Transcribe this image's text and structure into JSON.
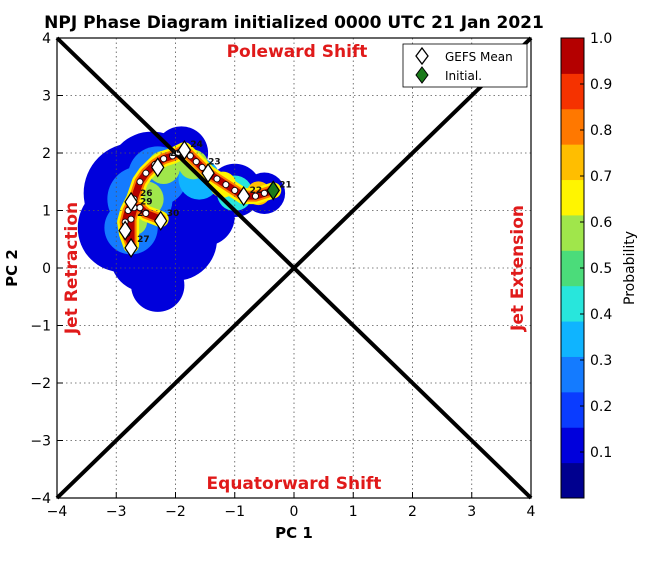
{
  "chart_data": {
    "type": "scatter",
    "title": "NPJ Phase Diagram initialized 0000 UTC 21 Jan 2021",
    "xlabel": "PC 1",
    "ylabel": "PC 2",
    "xlim": [
      -4,
      4
    ],
    "ylim": [
      -4,
      4
    ],
    "x_ticks": [
      "−4",
      "−3",
      "−2",
      "−1",
      "0",
      "1",
      "2",
      "3",
      "4"
    ],
    "y_ticks": [
      "−4",
      "−3",
      "−2",
      "−1",
      "0",
      "1",
      "2",
      "3",
      "4"
    ],
    "grid": true,
    "region_labels": {
      "top": "Poleward Shift",
      "bottom": "Equatorward Shift",
      "left": "Jet Retraction",
      "right": "Jet Extension"
    },
    "legend": {
      "placement": "top-right",
      "entries": [
        {
          "label": "GEFS Mean",
          "marker": "diamond",
          "color": "#ffffff"
        },
        {
          "label": "Initial.",
          "marker": "diamond",
          "color": "#1a7a1a"
        }
      ]
    },
    "colorbar": {
      "label": "Probability",
      "ticks": [
        "0.1",
        "0.2",
        "0.3",
        "0.4",
        "0.5",
        "0.6",
        "0.7",
        "0.8",
        "0.9",
        "1.0"
      ],
      "colors": [
        "#00008f",
        "#0000dc",
        "#0a3cff",
        "#147bff",
        "#0fb4ff",
        "#28e6dc",
        "#4bdc7a",
        "#a0e64b",
        "#fff500",
        "#ffbe00",
        "#ff7800",
        "#f53200",
        "#b40000"
      ]
    },
    "gefs_mean_path": [
      {
        "day": "21",
        "x": -0.35,
        "y": 1.35
      },
      {
        "day": "",
        "x": -0.5,
        "y": 1.3
      },
      {
        "day": "",
        "x": -0.65,
        "y": 1.25
      },
      {
        "day": "22",
        "x": -0.85,
        "y": 1.25
      },
      {
        "day": "",
        "x": -1.0,
        "y": 1.35
      },
      {
        "day": "",
        "x": -1.15,
        "y": 1.45
      },
      {
        "day": "",
        "x": -1.3,
        "y": 1.55
      },
      {
        "day": "",
        "x": -1.45,
        "y": 1.65
      },
      {
        "day": "23",
        "x": -1.55,
        "y": 1.75
      },
      {
        "day": "",
        "x": -1.65,
        "y": 1.85
      },
      {
        "day": "",
        "x": -1.75,
        "y": 1.95
      },
      {
        "day": "24",
        "x": -1.85,
        "y": 2.05
      },
      {
        "day": "",
        "x": -1.95,
        "y": 2.0
      },
      {
        "day": "",
        "x": -2.05,
        "y": 1.95
      },
      {
        "day": "25",
        "x": -2.2,
        "y": 1.9
      },
      {
        "day": "",
        "x": -2.35,
        "y": 1.8
      },
      {
        "day": "",
        "x": -2.5,
        "y": 1.65
      },
      {
        "day": "",
        "x": -2.6,
        "y": 1.5
      },
      {
        "day": "26",
        "x": -2.7,
        "y": 1.2
      },
      {
        "day": "",
        "x": -2.8,
        "y": 1.0
      },
      {
        "day": "",
        "x": -2.85,
        "y": 0.8
      },
      {
        "day": "",
        "x": -2.82,
        "y": 0.6
      },
      {
        "day": "27",
        "x": -2.75,
        "y": 0.4
      },
      {
        "day": "28",
        "x": -2.75,
        "y": 0.85
      },
      {
        "day": "29",
        "x": -2.7,
        "y": 1.05
      },
      {
        "day": "",
        "x": -2.6,
        "y": 1.05
      },
      {
        "day": "",
        "x": -2.5,
        "y": 0.95
      },
      {
        "day": "30",
        "x": -2.25,
        "y": 0.85
      }
    ],
    "mean_diamonds": [
      {
        "x": -0.35,
        "y": 1.35,
        "initial": true
      },
      {
        "x": -0.85,
        "y": 1.25
      },
      {
        "x": -1.45,
        "y": 1.65
      },
      {
        "x": -1.85,
        "y": 2.05
      },
      {
        "x": -2.3,
        "y": 1.75
      },
      {
        "x": -2.75,
        "y": 1.15
      },
      {
        "x": -2.85,
        "y": 0.65
      },
      {
        "x": -2.75,
        "y": 0.35
      },
      {
        "x": -2.25,
        "y": 0.82
      }
    ],
    "probability_field": [
      {
        "x": -2.7,
        "y": 1.3,
        "r": 0.85,
        "p": 0.12
      },
      {
        "x": -2.4,
        "y": 1.6,
        "r": 0.75,
        "p": 0.12
      },
      {
        "x": -2.9,
        "y": 0.7,
        "r": 0.75,
        "p": 0.12
      },
      {
        "x": -2.5,
        "y": 0.2,
        "r": 0.6,
        "p": 0.12
      },
      {
        "x": -2.0,
        "y": 0.5,
        "r": 0.7,
        "p": 0.12
      },
      {
        "x": -2.3,
        "y": -0.3,
        "r": 0.45,
        "p": 0.12
      },
      {
        "x": -1.5,
        "y": 0.9,
        "r": 0.5,
        "p": 0.12
      },
      {
        "x": -1.0,
        "y": 1.35,
        "r": 0.45,
        "p": 0.12
      },
      {
        "x": -0.5,
        "y": 1.3,
        "r": 0.35,
        "p": 0.12
      },
      {
        "x": -1.9,
        "y": 2.0,
        "r": 0.45,
        "p": 0.12
      },
      {
        "x": -2.6,
        "y": 1.2,
        "r": 0.55,
        "p": 0.3
      },
      {
        "x": -2.3,
        "y": 1.6,
        "r": 0.5,
        "p": 0.3
      },
      {
        "x": -2.75,
        "y": 0.7,
        "r": 0.45,
        "p": 0.3
      },
      {
        "x": -1.6,
        "y": 1.55,
        "r": 0.35,
        "p": 0.35
      },
      {
        "x": -1.0,
        "y": 1.3,
        "r": 0.3,
        "p": 0.4
      },
      {
        "x": -2.5,
        "y": 1.2,
        "r": 0.3,
        "p": 0.55
      },
      {
        "x": -2.2,
        "y": 1.75,
        "r": 0.28,
        "p": 0.6
      },
      {
        "x": -2.7,
        "y": 0.8,
        "r": 0.22,
        "p": 0.6
      },
      {
        "x": -1.7,
        "y": 1.8,
        "r": 0.25,
        "p": 0.6
      },
      {
        "x": -1.2,
        "y": 1.45,
        "r": 0.22,
        "p": 0.65
      },
      {
        "x": -0.6,
        "y": 1.3,
        "r": 0.2,
        "p": 0.7
      }
    ]
  }
}
